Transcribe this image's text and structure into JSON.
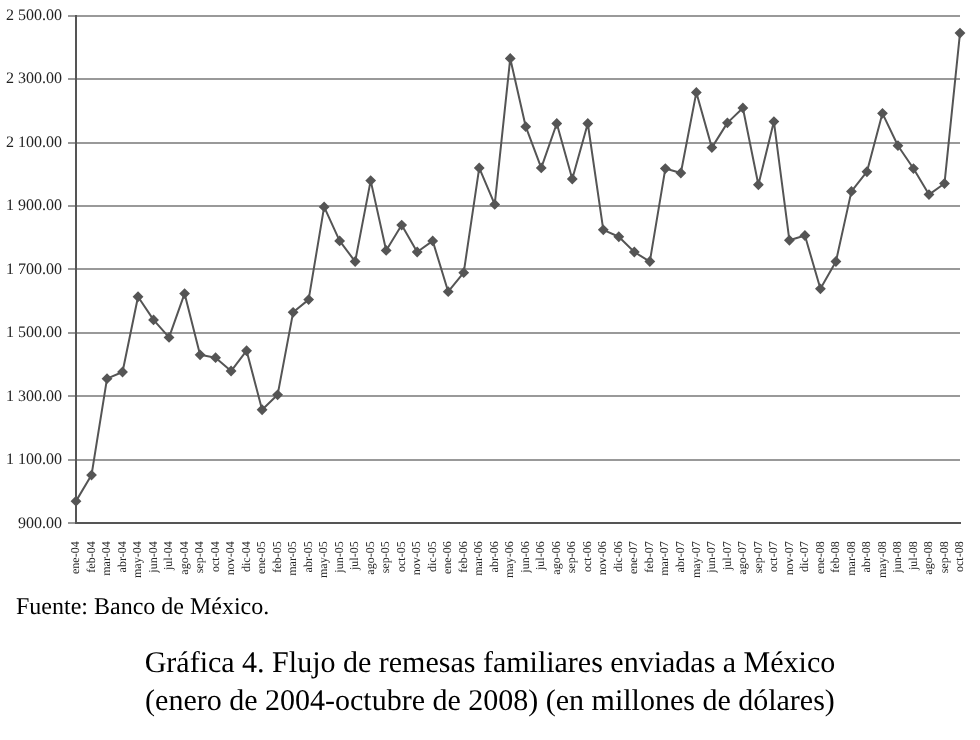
{
  "chart_data": {
    "type": "line",
    "title": "Gráfica 4. Flujo de remesas familiares enviadas a México",
    "subtitle": "(enero de 2004-octubre de 2008) (en millones de dólares)",
    "annotations": [
      "Fuente: Banco de México."
    ],
    "categories": [
      "ene-04",
      "feb-04",
      "mar-04",
      "abr-04",
      "may-04",
      "jun-04",
      "jul-04",
      "ago-04",
      "sep-04",
      "oct-04",
      "nov-04",
      "dic-04",
      "ene-05",
      "feb-05",
      "mar-05",
      "abr-05",
      "may-05",
      "jun-05",
      "jul-05",
      "ago-05",
      "sep-05",
      "oct-05",
      "nov-05",
      "dic-05",
      "ene-06",
      "feb-06",
      "mar-06",
      "abr-06",
      "may-06",
      "jun-06",
      "jul-06",
      "ago-06",
      "sep-06",
      "oct-06",
      "nov-06",
      "dic-06",
      "ene-07",
      "feb-07",
      "mar-07",
      "abr-07",
      "may-07",
      "jun-07",
      "jul-07",
      "ago-07",
      "sep-07",
      "oct-07",
      "nov-07",
      "dic-07",
      "ene-08",
      "feb-08",
      "mar-08",
      "abr-08",
      "may-08",
      "jun-08",
      "jul-08",
      "ago-08",
      "sep-08",
      "oct-08"
    ],
    "series": [
      {
        "color": "#555555",
        "values": [
          970,
          1052,
          1356,
          1377,
          1614,
          1541,
          1486,
          1624,
          1431,
          1422,
          1380,
          1444,
          1258,
          1305,
          1565,
          1605,
          1897,
          1790,
          1725,
          1980,
          1760,
          1840,
          1755,
          1790,
          1630,
          1690,
          2020,
          1905,
          2365,
          2150,
          2020,
          2160,
          1985,
          2160,
          1825,
          1803,
          1755,
          1725,
          2018,
          2004,
          2258,
          2084,
          2162,
          2209,
          1967,
          2166,
          1792,
          1807,
          1639,
          1725,
          1946,
          2008,
          2192,
          2090,
          2018,
          1936,
          1971,
          2445
        ]
      }
    ],
    "ylim": [
      900,
      2500
    ],
    "yticks": [
      {
        "value": 900,
        "label": "900.00"
      },
      {
        "value": 1100,
        "label": "1 100.00"
      },
      {
        "value": 1300,
        "label": "1 300.00"
      },
      {
        "value": 1500,
        "label": "1 500.00"
      },
      {
        "value": 1700,
        "label": "1 700.00"
      },
      {
        "value": 1900,
        "label": "1 900.00"
      },
      {
        "value": 2100,
        "label": "2 100.00"
      },
      {
        "value": 2300,
        "label": "2 300.00"
      },
      {
        "value": 2500,
        "label": "2 500.00"
      }
    ],
    "grid": "y",
    "legend": false,
    "marker": "diamond",
    "line_style": "solid"
  }
}
